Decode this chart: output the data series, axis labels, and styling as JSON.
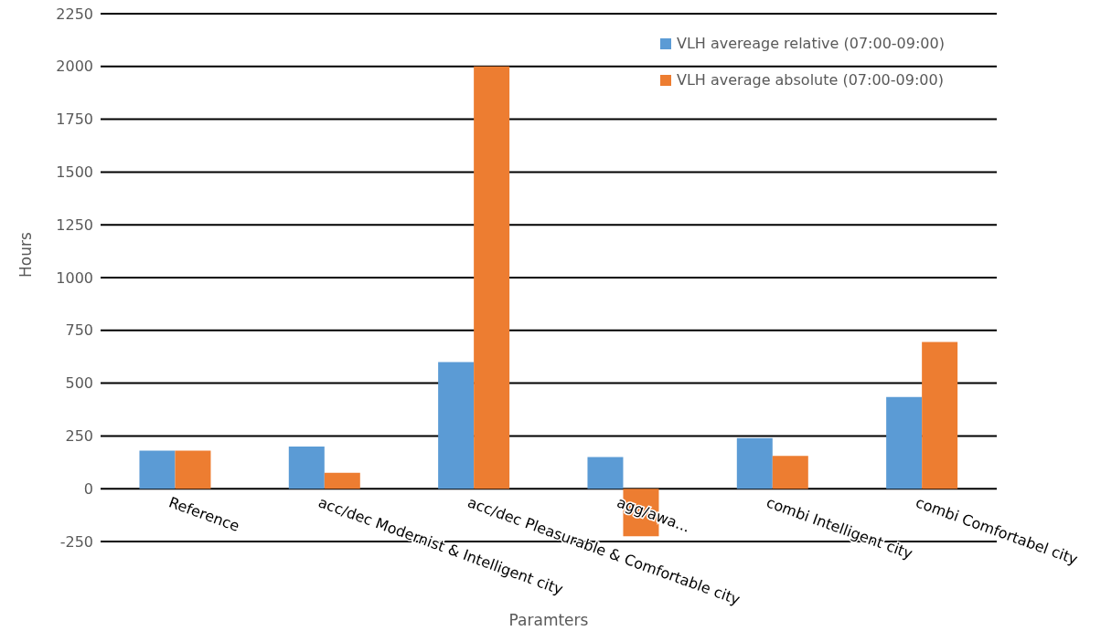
{
  "chart_data": {
    "type": "bar",
    "xlabel": "Paramters",
    "ylabel": "Hours",
    "categories": [
      "Reference",
      "acc/dec Modernist & Intelligent city",
      "acc/dec Pleasurable & Comfortable city",
      "agg/awa...",
      "combi Intelligent city",
      "combi Comfortabel city"
    ],
    "series": [
      {
        "name": "VLH avereage relative (07:00-09:00)",
        "color": "#5b9bd5",
        "values": [
          180,
          200,
          600,
          150,
          240,
          435
        ]
      },
      {
        "name": "VLH average absolute (07:00-09:00)",
        "color": "#ed7d31",
        "values": [
          180,
          75,
          2000,
          -225,
          155,
          695
        ]
      }
    ],
    "ylim": [
      -250,
      2250
    ],
    "yticks": [
      -250,
      0,
      250,
      500,
      750,
      1000,
      1250,
      1500,
      1750,
      2000,
      2250
    ],
    "grid": "y",
    "legend": "top right"
  }
}
